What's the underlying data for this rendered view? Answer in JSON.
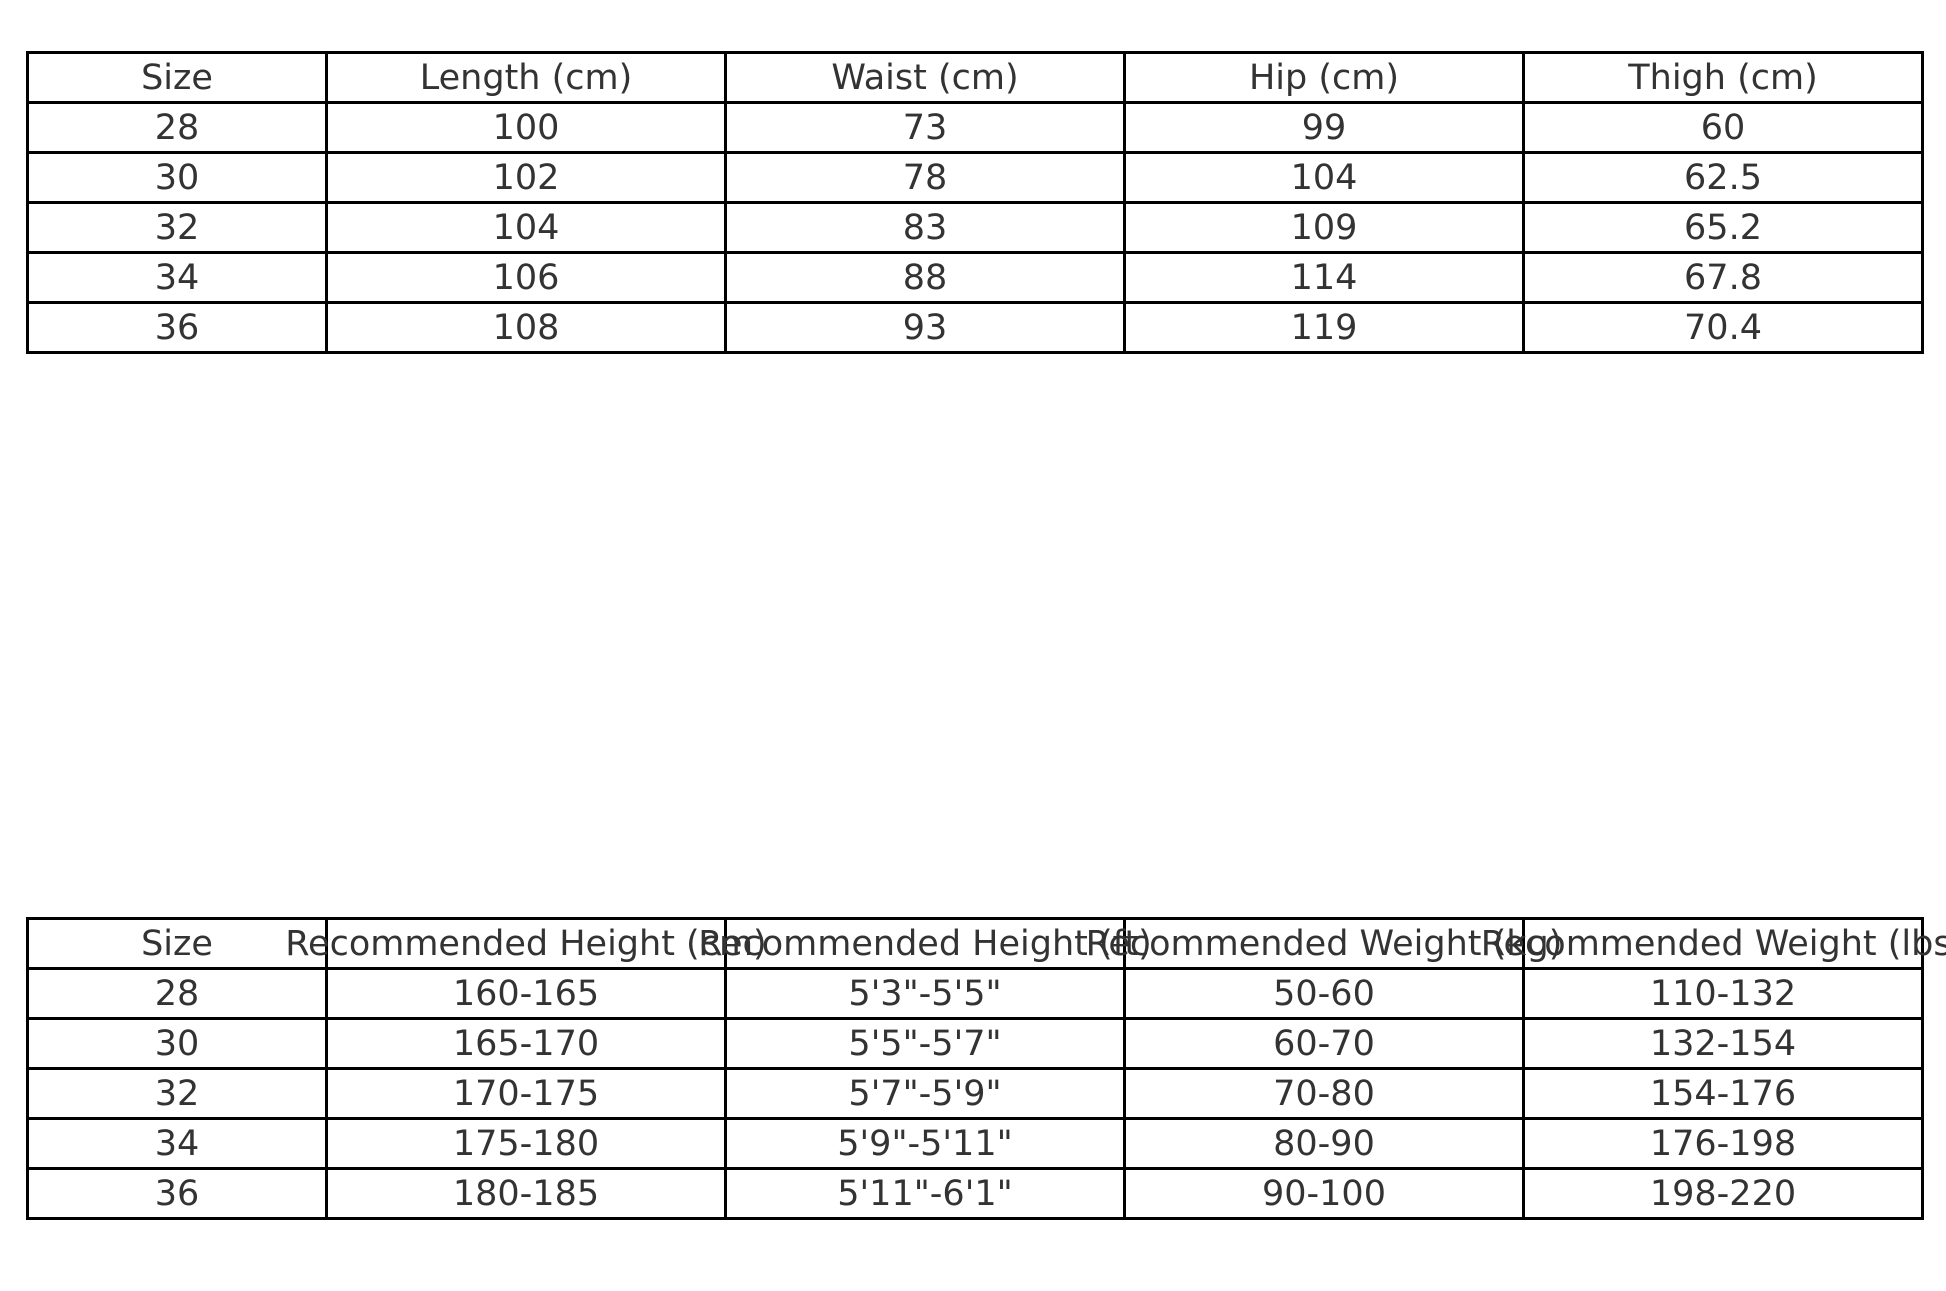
{
  "measurements": {
    "headers": [
      "Size",
      "Length (cm)",
      "Waist (cm)",
      "Hip (cm)",
      "Thigh (cm)"
    ],
    "rows": [
      [
        "28",
        "100",
        "73",
        "99",
        "60"
      ],
      [
        "30",
        "102",
        "78",
        "104",
        "62.5"
      ],
      [
        "32",
        "104",
        "83",
        "109",
        "65.2"
      ],
      [
        "34",
        "106",
        "88",
        "114",
        "67.8"
      ],
      [
        "36",
        "108",
        "93",
        "119",
        "70.4"
      ]
    ]
  },
  "recommendations": {
    "headers": [
      "Size",
      "Recommended Height (cm)",
      "Recommended Height (ft)",
      "Recommended Weight (kg)",
      "Recommended Weight (lbs)"
    ],
    "rows": [
      [
        "28",
        "160-165",
        "5'3\"-5'5\"",
        "50-60",
        "110-132"
      ],
      [
        "30",
        "165-170",
        "5'5\"-5'7\"",
        "60-70",
        "132-154"
      ],
      [
        "32",
        "170-175",
        "5'7\"-5'9\"",
        "70-80",
        "154-176"
      ],
      [
        "34",
        "175-180",
        "5'9\"-5'11\"",
        "80-90",
        "176-198"
      ],
      [
        "36",
        "180-185",
        "5'11\"-6'1\"",
        "90-100",
        "198-220"
      ]
    ]
  }
}
